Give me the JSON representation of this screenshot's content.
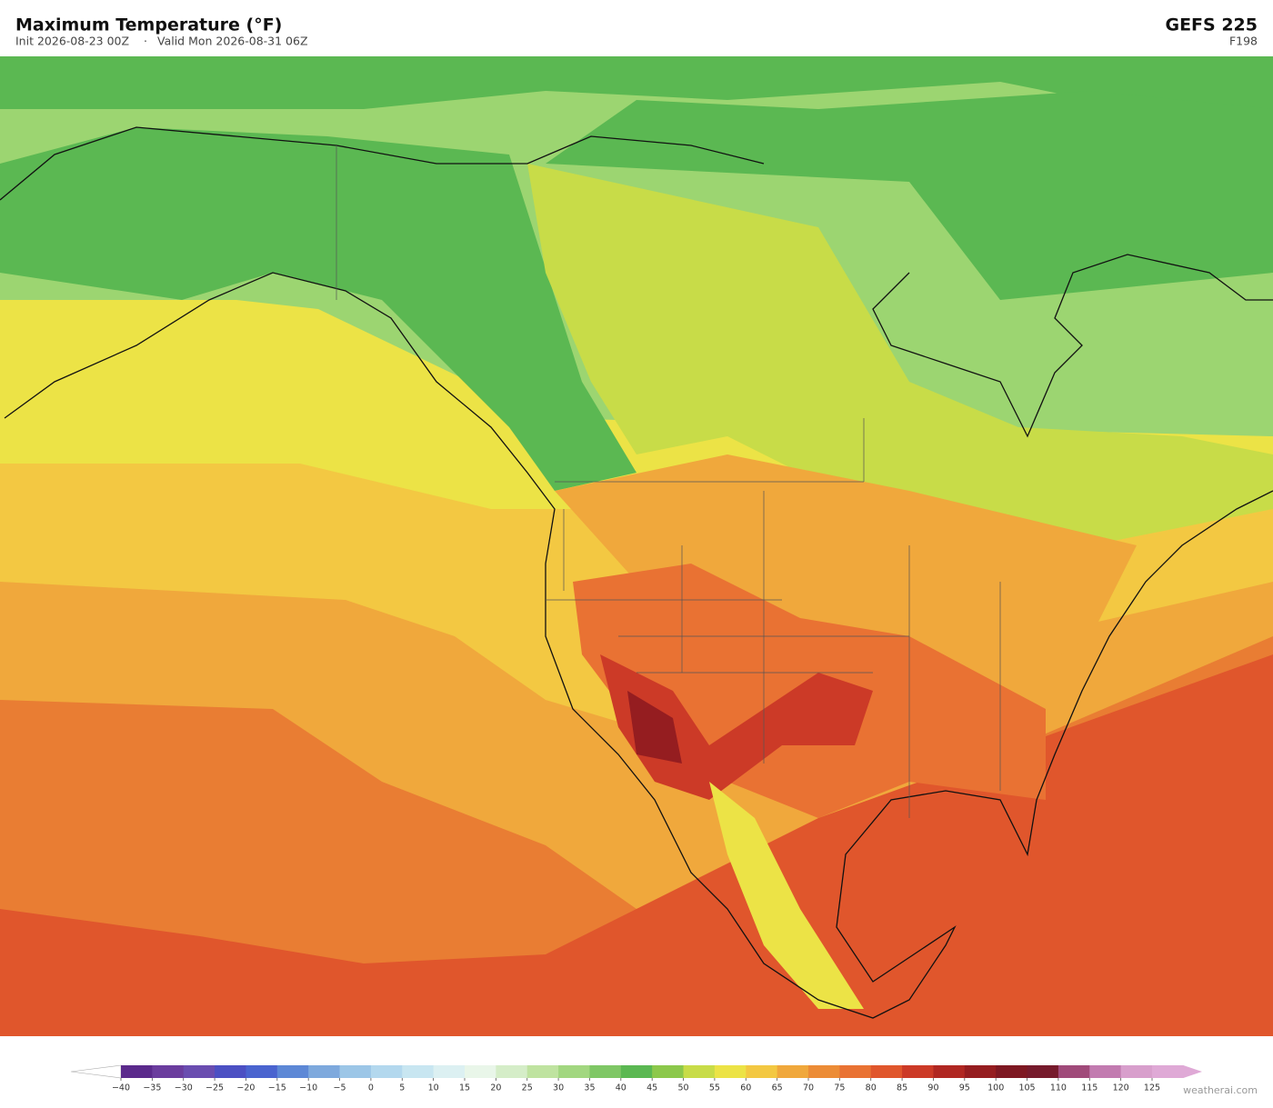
{
  "header": {
    "title": "Maximum Temperature  (°F)",
    "init": "Init 2026-08-23 00Z",
    "separator": "·",
    "valid": "Valid Mon 2026-08-31 06Z",
    "model": "GEFS  225",
    "forecast_hour": "F198"
  },
  "colorbar": {
    "ticks": [
      {
        "value": -40,
        "label": "−40"
      },
      {
        "value": -35,
        "label": "−35"
      },
      {
        "value": -30,
        "label": "−30"
      },
      {
        "value": -25,
        "label": "−25"
      },
      {
        "value": -20,
        "label": "−20"
      },
      {
        "value": -15,
        "label": "−15"
      },
      {
        "value": -10,
        "label": "−10"
      },
      {
        "value": -5,
        "label": "−5"
      },
      0,
      5,
      10,
      15,
      20,
      25,
      30,
      35,
      40,
      45,
      50,
      55,
      60,
      65,
      70,
      75,
      80,
      85,
      90,
      95,
      100,
      105,
      110,
      115,
      120,
      125
    ],
    "colors": [
      "#5b2a8c",
      "#6b3d9e",
      "#6a4db0",
      "#4c50c3",
      "#4a64cf",
      "#5d88d6",
      "#7ea9dd",
      "#9cc6e7",
      "#b3d8ee",
      "#c8e6f1",
      "#dcf0f2",
      "#e9f6e9",
      "#d5edc8",
      "#bfe3a0",
      "#a2d780",
      "#7fc765",
      "#5bb852",
      "#8cc84b",
      "#c8dc48",
      "#ece346",
      "#f3c842",
      "#f0a83c",
      "#ec8c36",
      "#e97233",
      "#e0562c",
      "#cc3a27",
      "#b02722",
      "#951d20",
      "#7e1822",
      "#761a2c",
      "#a04a7a",
      "#c27bb0",
      "#d89fcc"
    ],
    "under_color": "#ffffff",
    "over_color": "#dfa9d6"
  },
  "watermark": "weatherai.com"
}
